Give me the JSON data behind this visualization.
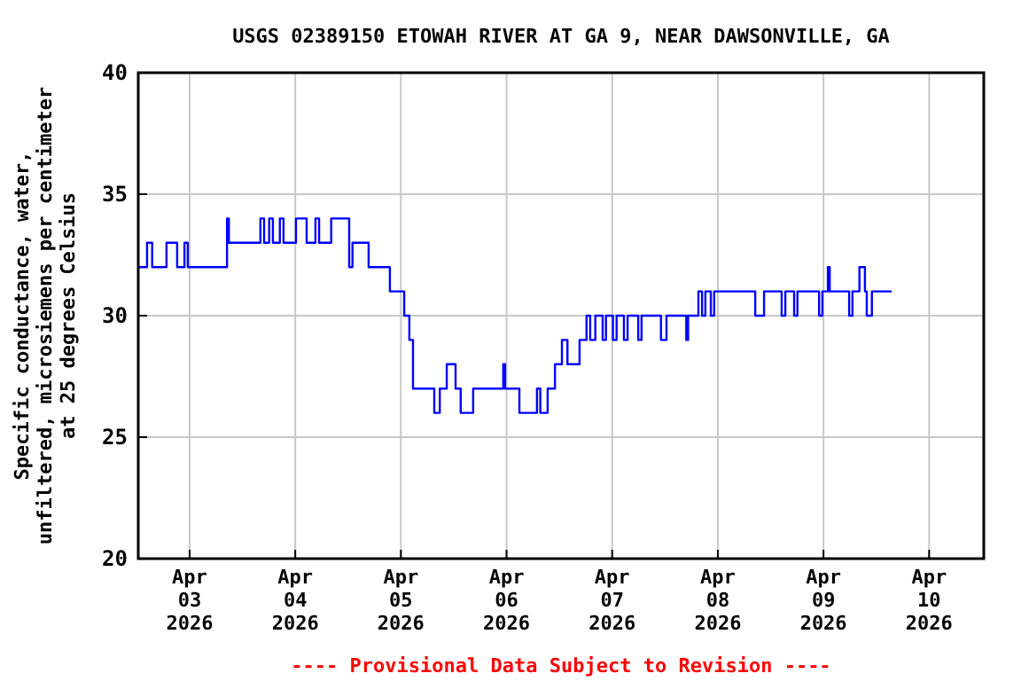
{
  "chart_data": {
    "type": "step",
    "title": "USGS 02389150 ETOWAH RIVER AT GA 9, NEAR DAWSONVILLE, GA",
    "ylabel": "Specific conductance, water,\nunfiltered, microsiemens per centimeter\nat 25 degrees Celsius",
    "annotations": [
      "---- Provisional Data Subject to Revision ----"
    ],
    "xlim": [
      "2026-04-02T12:20",
      "2026-04-10T12:25"
    ],
    "xticks": [
      {
        "value": "2026-04-03",
        "label": "Apr\n03\n2026"
      },
      {
        "value": "2026-04-04",
        "label": "Apr\n04\n2026"
      },
      {
        "value": "2026-04-05",
        "label": "Apr\n05\n2026"
      },
      {
        "value": "2026-04-06",
        "label": "Apr\n06\n2026"
      },
      {
        "value": "2026-04-07",
        "label": "Apr\n07\n2026"
      },
      {
        "value": "2026-04-08",
        "label": "Apr\n08\n2026"
      },
      {
        "value": "2026-04-09",
        "label": "Apr\n09\n2026"
      },
      {
        "value": "2026-04-10",
        "label": "Apr\n10\n2026"
      }
    ],
    "ylim": [
      20,
      40
    ],
    "yticks": [
      20,
      25,
      30,
      35,
      40
    ],
    "grid": true,
    "series": [
      {
        "color": "#0000ff",
        "x": [
          "2026-04-02T12:20",
          "2026-04-02T14:20",
          "2026-04-02T15:30",
          "2026-04-02T18:45",
          "2026-04-02T21:10",
          "2026-04-02T22:50",
          "2026-04-02T23:35",
          "2026-04-03T08:30",
          "2026-04-03T08:55",
          "2026-04-03T16:05",
          "2026-04-03T16:55",
          "2026-04-03T18:05",
          "2026-04-03T18:55",
          "2026-04-03T20:30",
          "2026-04-03T21:20",
          "2026-04-04T00:10",
          "2026-04-04T02:35",
          "2026-04-04T04:35",
          "2026-04-04T05:25",
          "2026-04-04T08:10",
          "2026-04-04T12:15",
          "2026-04-04T13:00",
          "2026-04-04T16:40",
          "2026-04-04T21:30",
          "2026-04-05T00:45",
          "2026-04-05T01:55",
          "2026-04-05T02:45",
          "2026-04-05T07:35",
          "2026-04-05T08:50",
          "2026-04-05T10:25",
          "2026-04-05T12:25",
          "2026-04-05T13:35",
          "2026-04-05T16:25",
          "2026-04-05T23:15",
          "2026-04-05T23:40",
          "2026-04-06T02:55",
          "2026-04-06T06:55",
          "2026-04-06T07:40",
          "2026-04-06T09:20",
          "2026-04-06T11:00",
          "2026-04-06T12:35",
          "2026-04-06T13:50",
          "2026-04-06T16:35",
          "2026-04-06T18:10",
          "2026-04-06T19:00",
          "2026-04-06T20:10",
          "2026-04-06T21:50",
          "2026-04-06T22:35",
          "2026-04-07T00:10",
          "2026-04-07T01:00",
          "2026-04-07T02:40",
          "2026-04-07T03:30",
          "2026-04-07T05:55",
          "2026-04-07T06:40",
          "2026-04-07T11:05",
          "2026-04-07T12:20",
          "2026-04-07T16:50",
          "2026-04-07T17:15",
          "2026-04-07T19:35",
          "2026-04-07T20:25",
          "2026-04-07T21:10",
          "2026-04-07T22:25",
          "2026-04-07T23:10",
          "2026-04-08T08:30",
          "2026-04-08T10:30",
          "2026-04-08T14:30",
          "2026-04-08T15:20",
          "2026-04-08T17:20",
          "2026-04-08T18:05",
          "2026-04-08T23:00",
          "2026-04-08T23:45",
          "2026-04-09T01:00",
          "2026-04-09T01:25",
          "2026-04-09T05:50",
          "2026-04-09T06:35",
          "2026-04-09T08:10",
          "2026-04-09T09:25",
          "2026-04-09T09:50",
          "2026-04-09T11:00",
          "2026-04-09T15:30"
        ],
        "values": [
          32,
          33,
          32,
          33,
          32,
          33,
          32,
          34,
          33,
          34,
          33,
          34,
          33,
          34,
          33,
          34,
          33,
          34,
          33,
          34,
          32,
          33,
          32,
          31,
          30,
          29,
          27,
          26,
          27,
          28,
          27,
          26,
          27,
          28,
          27,
          26,
          27,
          26,
          27,
          28,
          29,
          28,
          29,
          30,
          29,
          30,
          29,
          30,
          29,
          30,
          29,
          30,
          29,
          30,
          29,
          30,
          29,
          30,
          31,
          30,
          31,
          30,
          31,
          30,
          31,
          30,
          31,
          30,
          31,
          30,
          31,
          32,
          31,
          30,
          31,
          32,
          31,
          30,
          31,
          31
        ]
      }
    ]
  }
}
